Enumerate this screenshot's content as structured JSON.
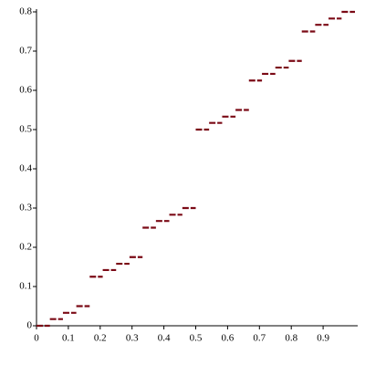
{
  "chart_data": {
    "type": "step-segments",
    "x": [
      0,
      0.042,
      0.083,
      0.125,
      0.167,
      0.208,
      0.25,
      0.292,
      0.333,
      0.375,
      0.417,
      0.458,
      0.5,
      0.542,
      0.583,
      0.625,
      0.667,
      0.708,
      0.75,
      0.792,
      0.833,
      0.875,
      0.917,
      0.958
    ],
    "x_end": [
      0.042,
      0.083,
      0.125,
      0.167,
      0.208,
      0.25,
      0.292,
      0.333,
      0.375,
      0.417,
      0.458,
      0.5,
      0.542,
      0.583,
      0.625,
      0.667,
      0.708,
      0.75,
      0.792,
      0.833,
      0.875,
      0.917,
      0.958,
      1
    ],
    "values": [
      0,
      0.017,
      0.033,
      0.05,
      0.125,
      0.142,
      0.158,
      0.175,
      0.25,
      0.267,
      0.283,
      0.3,
      0.5,
      0.517,
      0.533,
      0.55,
      0.625,
      0.642,
      0.658,
      0.675,
      0.75,
      0.767,
      0.783,
      0.8
    ],
    "color": "#7b0a16",
    "xlim": [
      0,
      1
    ],
    "ylim": [
      0,
      0.8
    ],
    "xticks": [
      0,
      0.1,
      0.2,
      0.3,
      0.4,
      0.5,
      0.6,
      0.7,
      0.8,
      0.9
    ],
    "yticks": [
      0,
      0.1,
      0.2,
      0.3,
      0.4,
      0.5,
      0.6,
      0.7,
      0.8
    ]
  }
}
